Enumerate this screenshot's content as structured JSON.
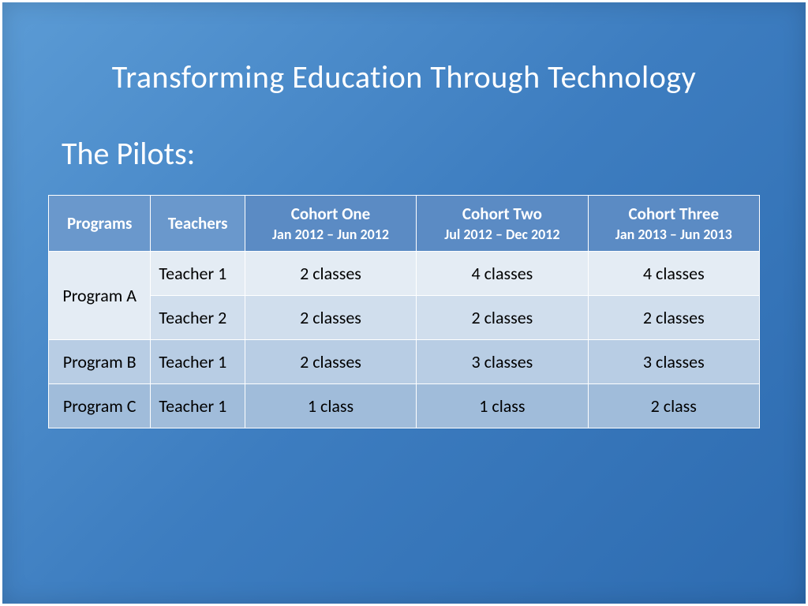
{
  "slide": {
    "title": "Transforming Education Through Technology",
    "subtitle": "The Pilots:",
    "background_gradient": [
      "#5b9bd5",
      "#3d7dc0",
      "#2d6bb0"
    ],
    "border_color": "#ffffff"
  },
  "table": {
    "type": "table",
    "header_bg": "#5b8bc4",
    "header_bg_left": "#6a98cc",
    "header_text_color": "#ffffff",
    "cell_text_color": "#000000",
    "border_color": "#ffffff",
    "row_shades": [
      "#e4ecf4",
      "#d0deed",
      "#b8cde4",
      "#a0bcda"
    ],
    "columns": {
      "programs": "Programs",
      "teachers": "Teachers",
      "cohort1": {
        "title": "Cohort One",
        "subtitle": "Jan 2012 – Jun 2012"
      },
      "cohort2": {
        "title": "Cohort Two",
        "subtitle": "Jul 2012 – Dec 2012"
      },
      "cohort3": {
        "title": "Cohort Three",
        "subtitle": "Jan 2013 – Jun 2013"
      }
    },
    "rows": [
      {
        "program": "Program A",
        "teacher": "Teacher 1",
        "c1": "2 classes",
        "c2": "4 classes",
        "c3": "4 classes",
        "rowspan_program": 2
      },
      {
        "program": "",
        "teacher": "Teacher 2",
        "c1": "2 classes",
        "c2": "2 classes",
        "c3": "2 classes"
      },
      {
        "program": "Program B",
        "teacher": "Teacher 1",
        "c1": "2 classes",
        "c2": "3 classes",
        "c3": "3 classes",
        "rowspan_program": 1
      },
      {
        "program": "Program C",
        "teacher": "Teacher 1",
        "c1": "1 class",
        "c2": "1 class",
        "c3": "2 class",
        "rowspan_program": 1
      }
    ]
  }
}
